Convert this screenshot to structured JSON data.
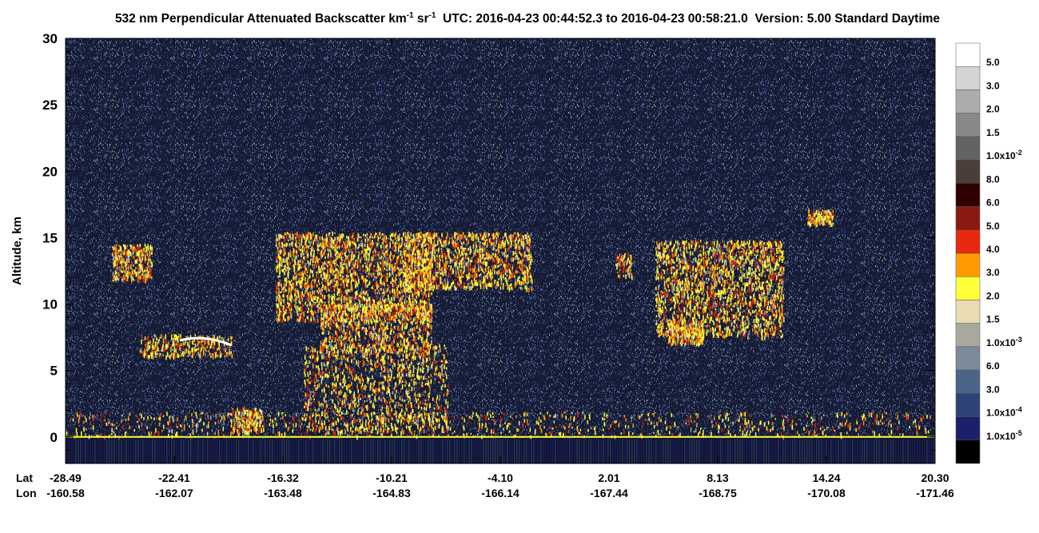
{
  "chart_data": {
    "type": "lidar-curtain",
    "title": [
      "532 nm Perpendicular Attenuated Backscatter km",
      "-1",
      " sr",
      "-1",
      "  UTC: 2016-04-23 00:44:52.3 to 2016-04-23 00:58:21.0  Version: 5.00 Standard Daytime"
    ],
    "y_label": "Altitude, km",
    "ylim": [
      -2,
      30
    ],
    "yticks": [
      0,
      5,
      10,
      15,
      20,
      25,
      30
    ],
    "x_rows": [
      {
        "name": "Lat",
        "labels": [
          "-28.49",
          "-22.41",
          "-16.32",
          "-10.21",
          "-4.10",
          "2.01",
          "8.13",
          "14.24",
          "20.30"
        ]
      },
      {
        "name": "Lon",
        "labels": [
          "-160.58",
          "-162.07",
          "-163.48",
          "-164.83",
          "-166.14",
          "-167.44",
          "-168.75",
          "-170.08",
          "-171.46"
        ]
      }
    ],
    "colorbar": {
      "colors": [
        "#ffffff",
        "#d4d4d4",
        "#acacac",
        "#888888",
        "#636363",
        "#4a3e3a",
        "#2e0000",
        "#8b1a12",
        "#e8290f",
        "#ff9a00",
        "#ffff3a",
        "#e8dcb0",
        "#a8a89c",
        "#7a8a99",
        "#4c6488",
        "#2e4278",
        "#1c1f6a",
        "#000000"
      ],
      "labels": [
        {
          "text": "5.0"
        },
        {
          "text": "3.0"
        },
        {
          "text": "2.0"
        },
        {
          "text": "1.5"
        },
        {
          "text": "1.0x10",
          "sup": "-2"
        },
        {
          "text": "8.0"
        },
        {
          "text": "6.0"
        },
        {
          "text": "5.0"
        },
        {
          "text": "4.0"
        },
        {
          "text": "3.0"
        },
        {
          "text": "2.0"
        },
        {
          "text": "1.5"
        },
        {
          "text": "1.0x10",
          "sup": "-3"
        },
        {
          "text": "6.0"
        },
        {
          "text": "3.0"
        },
        {
          "text": "1.0x10",
          "sup": "-4"
        },
        {
          "text": "1.0x10",
          "sup": "-5"
        }
      ]
    }
  }
}
